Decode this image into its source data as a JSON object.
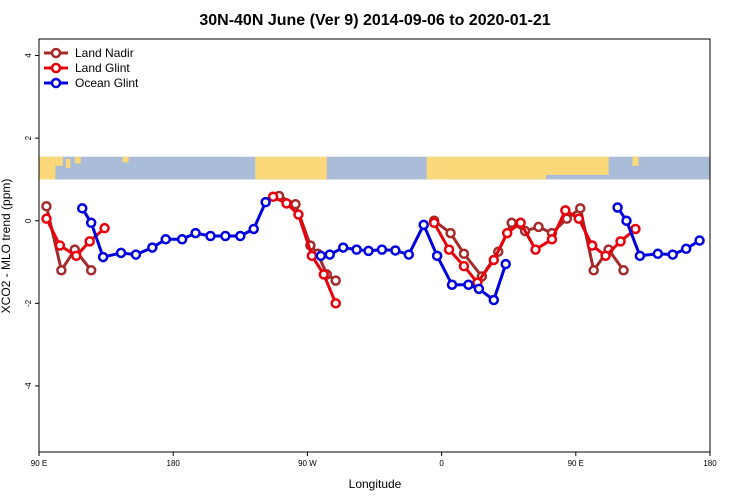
{
  "chart_data": {
    "type": "line",
    "title": "30N-40N June (Ver 9)   2014-09-06 to 2020-01-21",
    "xlabel": "Longitude",
    "ylabel": "XCO2 - MLO trend (ppm)",
    "xlim": [
      90,
      540
    ],
    "ylim": [
      -5.6,
      4.4
    ],
    "x_ticks": [
      {
        "value": 90,
        "label": "90 E"
      },
      {
        "value": 180,
        "label": "180"
      },
      {
        "value": 270,
        "label": "90 W"
      },
      {
        "value": 360,
        "label": "0"
      },
      {
        "value": 450,
        "label": "90 E"
      },
      {
        "value": 540,
        "label": "180"
      }
    ],
    "y_ticks": [
      {
        "value": -4,
        "label": "-4"
      },
      {
        "value": -2,
        "label": "-2"
      },
      {
        "value": 0,
        "label": "0"
      },
      {
        "value": 2,
        "label": "2"
      },
      {
        "value": 4,
        "label": "4"
      }
    ],
    "map_band": {
      "y_top": 1.55,
      "y_bottom": 1.0,
      "ocean_color": "#a9bcd8",
      "land_color": "#fbd97a"
    },
    "legend": {
      "position": "top-left"
    },
    "series": [
      {
        "name": "Land Nadir",
        "color": "#a52a2a",
        "segments": [
          [
            [
              95,
              0.35
            ],
            [
              105,
              -1.2
            ],
            [
              114,
              -0.7
            ],
            [
              125,
              -1.2
            ]
          ],
          [
            [
              251,
              0.6
            ],
            [
              262,
              0.4
            ],
            [
              272,
              -0.6
            ],
            [
              277,
              -0.8
            ],
            [
              283,
              -1.3
            ],
            [
              289,
              -1.45
            ]
          ],
          [
            [
              355,
              0.0
            ],
            [
              366,
              -0.3
            ],
            [
              375,
              -0.8
            ],
            [
              387,
              -1.35
            ],
            [
              398,
              -0.75
            ],
            [
              407,
              -0.05
            ],
            [
              416,
              -0.25
            ],
            [
              425,
              -0.15
            ],
            [
              434,
              -0.3
            ],
            [
              444,
              0.05
            ],
            [
              453,
              0.3
            ],
            [
              462,
              -1.2
            ],
            [
              472,
              -0.7
            ],
            [
              482,
              -1.2
            ]
          ]
        ]
      },
      {
        "name": "Land Glint",
        "color": "#e8000b",
        "segments": [
          [
            [
              95,
              0.05
            ],
            [
              104,
              -0.6
            ],
            [
              115,
              -0.85
            ],
            [
              124,
              -0.5
            ],
            [
              134,
              -0.18
            ]
          ],
          [
            [
              247,
              0.58
            ],
            [
              256,
              0.42
            ],
            [
              264,
              0.15
            ],
            [
              273,
              -0.85
            ],
            [
              281,
              -1.3
            ],
            [
              289,
              -2.0
            ]
          ],
          [
            [
              355,
              -0.05
            ],
            [
              365,
              -0.7
            ],
            [
              375,
              -1.1
            ],
            [
              384,
              -1.5
            ],
            [
              395,
              -0.95
            ],
            [
              404,
              -0.3
            ],
            [
              413,
              -0.05
            ],
            [
              423,
              -0.7
            ],
            [
              434,
              -0.45
            ],
            [
              443,
              0.25
            ],
            [
              452,
              0.05
            ],
            [
              461,
              -0.6
            ],
            [
              470,
              -0.85
            ],
            [
              480,
              -0.5
            ],
            [
              490,
              -0.2
            ]
          ]
        ]
      },
      {
        "name": "Ocean Glint",
        "color": "#0000e0",
        "segments": [
          [
            [
              119,
              0.3
            ],
            [
              125,
              -0.05
            ],
            [
              133,
              -0.88
            ],
            [
              145,
              -0.78
            ],
            [
              155,
              -0.82
            ],
            [
              166,
              -0.65
            ],
            [
              175,
              -0.45
            ],
            [
              186,
              -0.45
            ],
            [
              195,
              -0.3
            ],
            [
              205,
              -0.37
            ],
            [
              215,
              -0.37
            ],
            [
              225,
              -0.37
            ],
            [
              234,
              -0.2
            ],
            [
              242,
              0.45
            ]
          ],
          [
            [
              279,
              -0.85
            ],
            [
              285,
              -0.82
            ],
            [
              294,
              -0.65
            ],
            [
              303,
              -0.7
            ],
            [
              311,
              -0.73
            ],
            [
              320,
              -0.7
            ],
            [
              329,
              -0.72
            ],
            [
              338,
              -0.82
            ],
            [
              348,
              -0.1
            ],
            [
              357,
              -0.85
            ],
            [
              367,
              -1.55
            ],
            [
              378,
              -1.55
            ],
            [
              385,
              -1.65
            ],
            [
              395,
              -1.92
            ],
            [
              403,
              -1.05
            ]
          ],
          [
            [
              478,
              0.32
            ],
            [
              484,
              0.0
            ],
            [
              493,
              -0.85
            ],
            [
              505,
              -0.8
            ],
            [
              515,
              -0.82
            ],
            [
              524,
              -0.68
            ],
            [
              533,
              -0.48
            ]
          ]
        ]
      }
    ]
  }
}
